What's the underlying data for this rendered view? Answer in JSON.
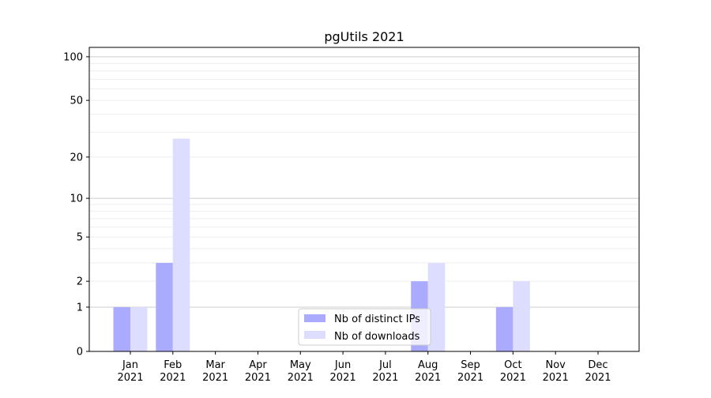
{
  "chart_data": {
    "type": "bar",
    "title": "pgUtils 2021",
    "xlabel": "",
    "ylabel": "",
    "yscale": "log10(y+1)",
    "ylim": [
      0,
      116
    ],
    "yticks": [
      0,
      1,
      2,
      5,
      10,
      20,
      50,
      100
    ],
    "grid": true,
    "legend_position": "lower-center",
    "categories": [
      [
        "Jan",
        "2021"
      ],
      [
        "Feb",
        "2021"
      ],
      [
        "Mar",
        "2021"
      ],
      [
        "Apr",
        "2021"
      ],
      [
        "May",
        "2021"
      ],
      [
        "Jun",
        "2021"
      ],
      [
        "Jul",
        "2021"
      ],
      [
        "Aug",
        "2021"
      ],
      [
        "Sep",
        "2021"
      ],
      [
        "Oct",
        "2021"
      ],
      [
        "Nov",
        "2021"
      ],
      [
        "Dec",
        "2021"
      ]
    ],
    "series": [
      {
        "name": "Nb of distinct IPs",
        "color": "#aaaaff",
        "values": [
          1,
          3,
          0,
          0,
          0,
          0,
          0,
          2,
          0,
          1,
          0,
          0
        ]
      },
      {
        "name": "Nb of downloads",
        "color": "#ddddff",
        "values": [
          1,
          27,
          0,
          0,
          0,
          0,
          0,
          3,
          0,
          2,
          0,
          0
        ]
      }
    ]
  }
}
